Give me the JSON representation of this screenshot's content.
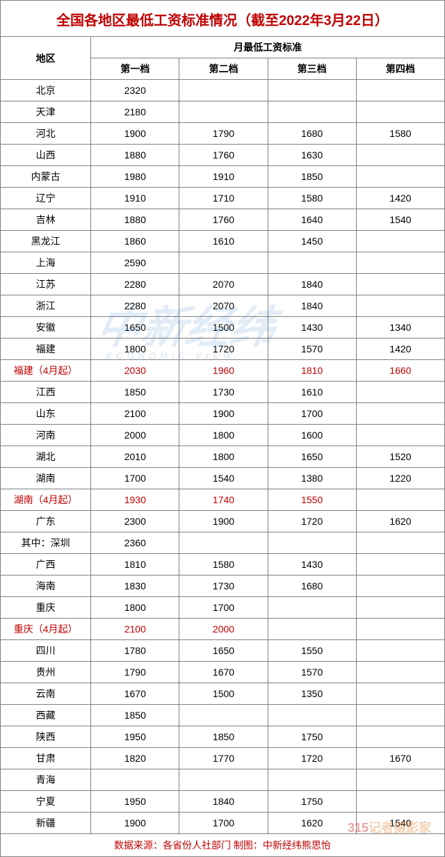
{
  "title": "全国各地区最低工资标准情况（截至2022年3月22日）",
  "header": {
    "region": "地区",
    "group": "月最低工资标准",
    "tiers": [
      "第一档",
      "第二档",
      "第三档",
      "第四档"
    ]
  },
  "rows": [
    {
      "region": "北京",
      "t1": "2320",
      "t2": "",
      "t3": "",
      "t4": "",
      "red": false
    },
    {
      "region": "天津",
      "t1": "2180",
      "t2": "",
      "t3": "",
      "t4": "",
      "red": false
    },
    {
      "region": "河北",
      "t1": "1900",
      "t2": "1790",
      "t3": "1680",
      "t4": "1580",
      "red": false
    },
    {
      "region": "山西",
      "t1": "1880",
      "t2": "1760",
      "t3": "1630",
      "t4": "",
      "red": false
    },
    {
      "region": "内蒙古",
      "t1": "1980",
      "t2": "1910",
      "t3": "1850",
      "t4": "",
      "red": false
    },
    {
      "region": "辽宁",
      "t1": "1910",
      "t2": "1710",
      "t3": "1580",
      "t4": "1420",
      "red": false
    },
    {
      "region": "吉林",
      "t1": "1880",
      "t2": "1760",
      "t3": "1640",
      "t4": "1540",
      "red": false
    },
    {
      "region": "黑龙江",
      "t1": "1860",
      "t2": "1610",
      "t3": "1450",
      "t4": "",
      "red": false
    },
    {
      "region": "上海",
      "t1": "2590",
      "t2": "",
      "t3": "",
      "t4": "",
      "red": false
    },
    {
      "region": "江苏",
      "t1": "2280",
      "t2": "2070",
      "t3": "1840",
      "t4": "",
      "red": false
    },
    {
      "region": "浙江",
      "t1": "2280",
      "t2": "2070",
      "t3": "1840",
      "t4": "",
      "red": false
    },
    {
      "region": "安徽",
      "t1": "1650",
      "t2": "1500",
      "t3": "1430",
      "t4": "1340",
      "red": false
    },
    {
      "region": "福建",
      "t1": "1800",
      "t2": "1720",
      "t3": "1570",
      "t4": "1420",
      "red": false
    },
    {
      "region": "福建（4月起）",
      "t1": "2030",
      "t2": "1960",
      "t3": "1810",
      "t4": "1660",
      "red": true
    },
    {
      "region": "江西",
      "t1": "1850",
      "t2": "1730",
      "t3": "1610",
      "t4": "",
      "red": false
    },
    {
      "region": "山东",
      "t1": "2100",
      "t2": "1900",
      "t3": "1700",
      "t4": "",
      "red": false
    },
    {
      "region": "河南",
      "t1": "2000",
      "t2": "1800",
      "t3": "1600",
      "t4": "",
      "red": false
    },
    {
      "region": "湖北",
      "t1": "2010",
      "t2": "1800",
      "t3": "1650",
      "t4": "1520",
      "red": false
    },
    {
      "region": "湖南",
      "t1": "1700",
      "t2": "1540",
      "t3": "1380",
      "t4": "1220",
      "red": false
    },
    {
      "region": "湖南（4月起）",
      "t1": "1930",
      "t2": "1740",
      "t3": "1550",
      "t4": "",
      "red": true
    },
    {
      "region": "广东",
      "t1": "2300",
      "t2": "1900",
      "t3": "1720",
      "t4": "1620",
      "red": false
    },
    {
      "region": "其中：深圳",
      "t1": "2360",
      "t2": "",
      "t3": "",
      "t4": "",
      "red": false
    },
    {
      "region": "广西",
      "t1": "1810",
      "t2": "1580",
      "t3": "1430",
      "t4": "",
      "red": false
    },
    {
      "region": "海南",
      "t1": "1830",
      "t2": "1730",
      "t3": "1680",
      "t4": "",
      "red": false
    },
    {
      "region": "重庆",
      "t1": "1800",
      "t2": "1700",
      "t3": "",
      "t4": "",
      "red": false
    },
    {
      "region": "重庆（4月起）",
      "t1": "2100",
      "t2": "2000",
      "t3": "",
      "t4": "",
      "red": true
    },
    {
      "region": "四川",
      "t1": "1780",
      "t2": "1650",
      "t3": "1550",
      "t4": "",
      "red": false
    },
    {
      "region": "贵州",
      "t1": "1790",
      "t2": "1670",
      "t3": "1570",
      "t4": "",
      "red": false
    },
    {
      "region": "云南",
      "t1": "1670",
      "t2": "1500",
      "t3": "1350",
      "t4": "",
      "red": false
    },
    {
      "region": "西藏",
      "t1": "1850",
      "t2": "",
      "t3": "",
      "t4": "",
      "red": false
    },
    {
      "region": "陕西",
      "t1": "1950",
      "t2": "1850",
      "t3": "1750",
      "t4": "",
      "red": false
    },
    {
      "region": "甘肃",
      "t1": "1820",
      "t2": "1770",
      "t3": "1720",
      "t4": "1670",
      "red": false
    },
    {
      "region": "青海",
      "t1": "",
      "t2": "",
      "t3": "",
      "t4": "",
      "red": false
    },
    {
      "region": "宁夏",
      "t1": "1950",
      "t2": "1840",
      "t3": "1750",
      "t4": "",
      "red": false
    },
    {
      "region": "新疆",
      "t1": "1900",
      "t2": "1700",
      "t3": "1620",
      "t4": "1540",
      "red": false
    }
  ],
  "footer": "数据来源：各省份人社部门  制图：中新经纬熊思怡",
  "watermark1": {
    "text": "中新经纬",
    "sub": "ECONOMIC VIEW"
  },
  "watermark2": {
    "num": "315",
    "text": "记者摄影家"
  },
  "colors": {
    "title": "#c00000",
    "border": "#808080",
    "text": "#000000",
    "red_text": "#c00000",
    "wm_blue": "#1e6bb8",
    "wm_orange": "#e08030"
  }
}
